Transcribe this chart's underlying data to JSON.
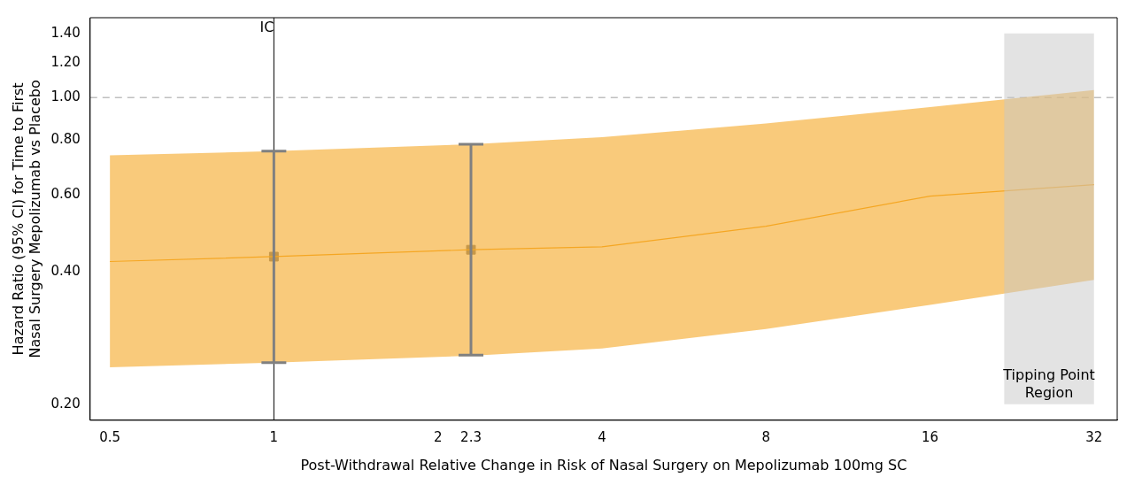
{
  "chart_data": {
    "type": "line",
    "xlabel": "Post-Withdrawal Relative Change in Risk of Nasal Surgery on Mepolizumab 100mg SC",
    "ylabel": "Hazard Ratio (95% CI) for Time to First Nasal Surgery Mepolizumab vs Placebo",
    "log": "xy",
    "grid": false,
    "legend": false,
    "x": [
      0.5,
      1,
      2.3,
      4,
      8,
      16,
      32
    ],
    "series": [
      {
        "color": "#f5a623",
        "values": [
          0.423,
          0.434,
          0.45,
          0.457,
          0.509,
          0.596,
          0.633
        ],
        "lower": [
          0.243,
          0.249,
          0.258,
          0.268,
          0.297,
          0.337,
          0.384
        ],
        "upper": [
          0.738,
          0.755,
          0.783,
          0.812,
          0.873,
          0.951,
          1.04
        ],
        "marker": "none"
      },
      {
        "type": "scatter",
        "color": "#808080",
        "x": [
          1,
          2.3
        ],
        "values": [
          0.434,
          0.45
        ],
        "errors": [
          [
            0.249,
            0.755
          ],
          [
            0.259,
            0.783
          ]
        ],
        "marker": "square"
      }
    ],
    "xlim": [
      0.46,
      35.3
    ],
    "ylim": [
      0.184,
      1.52
    ],
    "xticks": [
      0.5,
      1,
      2,
      2.3,
      4,
      8,
      16,
      32
    ],
    "yticks": [
      {
        "value": 0.2,
        "label": "0.20"
      },
      {
        "value": 0.4,
        "label": "0.40"
      },
      {
        "value": 0.6,
        "label": "0.60"
      },
      {
        "value": 0.8,
        "label": "0.80"
      },
      {
        "value": 1,
        "label": "1.00"
      },
      {
        "value": 1.2,
        "label": "1.20"
      },
      {
        "value": 1.4,
        "label": "1.40"
      }
    ],
    "ref_lines": [
      {
        "axis": "y",
        "value": 1,
        "color": "#a0a0a0",
        "line_style": "dashed"
      },
      {
        "axis": "x",
        "value": 1,
        "label": "IC",
        "color": "#000000",
        "line_style": "solid"
      }
    ],
    "bands": [
      {
        "axis": "x",
        "from": 21.9,
        "to": 32,
        "label": "Tipping Point Region",
        "color": "#c8c8c8"
      }
    ]
  }
}
